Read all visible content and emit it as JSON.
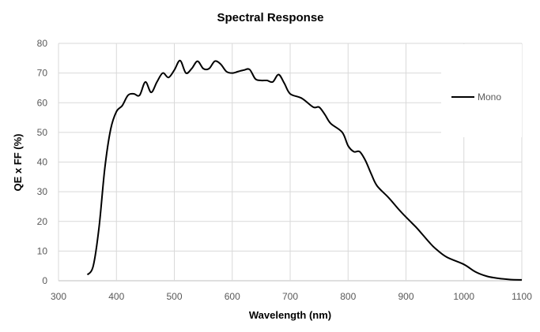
{
  "chart_data": {
    "type": "line",
    "title": "Spectral Response",
    "xlabel": "Wavelength (nm)",
    "ylabel": "QE x FF (%)",
    "xlim": [
      300,
      1100
    ],
    "ylim": [
      0,
      80
    ],
    "xticks": [
      300,
      400,
      500,
      600,
      700,
      800,
      900,
      1000,
      1100
    ],
    "yticks": [
      0,
      10,
      20,
      30,
      40,
      50,
      60,
      70,
      80
    ],
    "grid": true,
    "legend_position": "right",
    "series": [
      {
        "name": "Mono",
        "color": "#000000",
        "x": [
          350,
          360,
          370,
          380,
          390,
          400,
          410,
          420,
          430,
          440,
          450,
          460,
          470,
          480,
          490,
          500,
          510,
          520,
          530,
          540,
          550,
          560,
          570,
          580,
          590,
          600,
          610,
          620,
          630,
          640,
          650,
          660,
          670,
          680,
          690,
          700,
          720,
          740,
          750,
          760,
          770,
          790,
          800,
          810,
          820,
          830,
          840,
          850,
          870,
          890,
          910,
          920,
          940,
          950,
          970,
          1000,
          1020,
          1040,
          1060,
          1080,
          1100
        ],
        "y": [
          2,
          5,
          18,
          38,
          51,
          57,
          59,
          62.5,
          63,
          62.5,
          67,
          63.5,
          67,
          70,
          68.5,
          71,
          74.2,
          70,
          71.5,
          74,
          71.5,
          71.5,
          74,
          73,
          70.5,
          70,
          70.5,
          71,
          71.2,
          68,
          67.5,
          67.5,
          67,
          69.5,
          66.5,
          63,
          61.5,
          58.5,
          58.5,
          56,
          53,
          50,
          45.5,
          43.5,
          43.5,
          40.5,
          36,
          32,
          28,
          23.5,
          19.5,
          17.5,
          13,
          11,
          8,
          5.5,
          3,
          1.5,
          0.8,
          0.4,
          0.3
        ]
      }
    ]
  }
}
